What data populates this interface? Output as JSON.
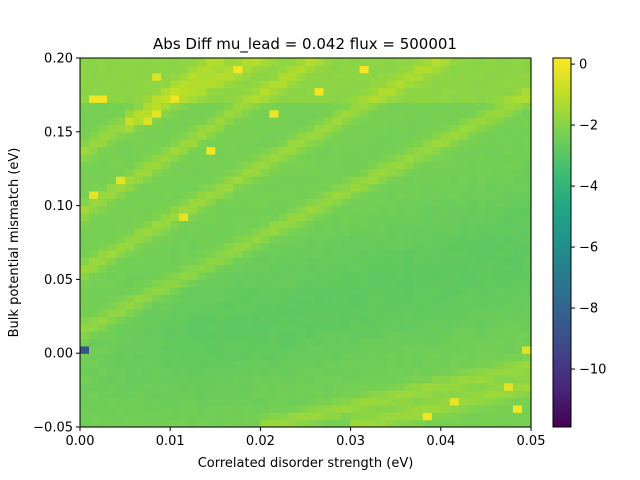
{
  "chart_data": {
    "type": "heatmap",
    "title": "Abs Diff mu_lead = 0.042 flux = 500001",
    "xlabel": "Correlated disorder strength (eV)",
    "ylabel": "Bulk potential mismatch (eV)",
    "xlim": [
      0.0,
      0.05
    ],
    "ylim": [
      -0.05,
      0.2
    ],
    "x_ticks": [
      "0.00",
      "0.01",
      "0.02",
      "0.03",
      "0.04",
      "0.05"
    ],
    "x_tick_values": [
      0.0,
      0.01,
      0.02,
      0.03,
      0.04,
      0.05
    ],
    "y_ticks": [
      "−0.05",
      "0.00",
      "0.05",
      "0.10",
      "0.15",
      "0.20"
    ],
    "y_tick_values": [
      -0.05,
      0.0,
      0.05,
      0.1,
      0.15,
      0.2
    ],
    "grid_cols": 50,
    "grid_rows": 50,
    "colormap": "viridis",
    "colorbar": {
      "vmin": -11.9,
      "vmax": 0.2,
      "ticks": [
        "0",
        "−2",
        "−4",
        "−6",
        "−8",
        "−10"
      ],
      "tick_values": [
        0,
        -2,
        -4,
        -6,
        -8,
        -10
      ]
    },
    "background_value": -2.3,
    "valley_value": -2.8,
    "band_value": -1.6,
    "hot_value": -0.2,
    "outlier": {
      "x": 0.0005,
      "y": 0.0025,
      "value": -8.8
    },
    "bright_spots": [
      {
        "x": 0.0015,
        "y": 0.1725,
        "value": 0.0
      },
      {
        "x": 0.0025,
        "y": 0.1725,
        "value": 0.0
      },
      {
        "x": 0.0015,
        "y": 0.1075,
        "value": -0.2
      },
      {
        "x": 0.0045,
        "y": 0.1175,
        "value": -0.3
      },
      {
        "x": 0.0075,
        "y": 0.1575,
        "value": -0.5
      },
      {
        "x": 0.0085,
        "y": 0.1625,
        "value": -0.3
      },
      {
        "x": 0.0085,
        "y": 0.1875,
        "value": -0.4
      },
      {
        "x": 0.0105,
        "y": 0.1725,
        "value": -0.1
      },
      {
        "x": 0.0115,
        "y": 0.0925,
        "value": -0.3
      },
      {
        "x": 0.0145,
        "y": 0.1375,
        "value": 0.0
      },
      {
        "x": 0.0175,
        "y": 0.1925,
        "value": 0.0
      },
      {
        "x": 0.0215,
        "y": 0.1625,
        "value": -0.1
      },
      {
        "x": 0.0265,
        "y": 0.1775,
        "value": 0.0
      },
      {
        "x": 0.0315,
        "y": 0.1925,
        "value": 0.0
      },
      {
        "x": 0.0385,
        "y": -0.0425,
        "value": 0.0
      },
      {
        "x": 0.0415,
        "y": -0.0325,
        "value": -0.2
      },
      {
        "x": 0.0475,
        "y": -0.0225,
        "value": -0.3
      },
      {
        "x": 0.0485,
        "y": -0.0375,
        "value": 0.0
      },
      {
        "x": 0.0495,
        "y": 0.0025,
        "value": -0.4
      }
    ],
    "diagonal_bands": [
      {
        "x0": 0.0,
        "y0": 0.135,
        "slope": 4.2
      },
      {
        "x0": 0.0,
        "y0": 0.095,
        "slope": 4.0
      },
      {
        "x0": 0.0,
        "y0": 0.055,
        "slope": 3.6
      },
      {
        "x0": 0.0,
        "y0": 0.015,
        "slope": 3.2
      },
      {
        "x0": 0.005,
        "y0": 0.155,
        "slope": 3.0
      },
      {
        "x0": 0.02,
        "y0": -0.05,
        "slope": 1.4
      },
      {
        "x0": 0.03,
        "y0": -0.05,
        "slope": 1.4
      }
    ]
  }
}
